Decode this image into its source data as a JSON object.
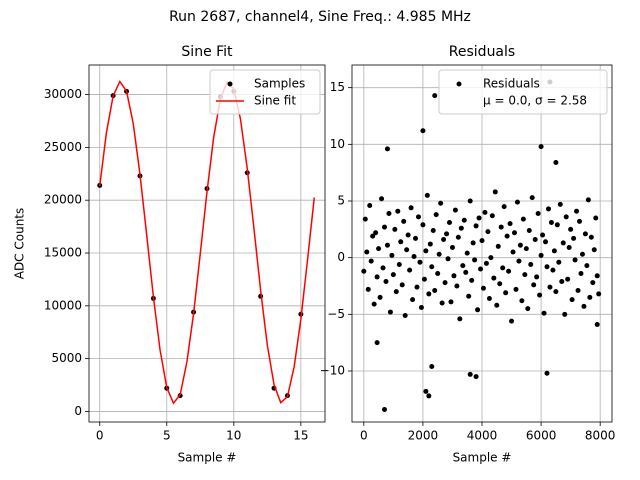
{
  "title": "Run 2687, channel4, Sine Freq.: 4.985 MHz",
  "chart_data": [
    {
      "type": "line",
      "title": "Sine Fit",
      "xlabel": "Sample #",
      "ylabel": "ADC Counts",
      "xlim": [
        -0.8,
        16.8
      ],
      "xticks": [
        0,
        5,
        10,
        15
      ],
      "ylim": [
        -1000,
        32800
      ],
      "yticks": [
        0,
        5000,
        10000,
        15000,
        20000,
        25000,
        30000
      ],
      "grid": true,
      "legend": "upper right",
      "series": [
        {
          "name": "Samples",
          "type": "scatter",
          "color": "#000000",
          "x": [
            0,
            1,
            2,
            3,
            4,
            5,
            6,
            7,
            8,
            9,
            10,
            11,
            12,
            13,
            14,
            15
          ],
          "values": [
            21400,
            29900,
            30300,
            22300,
            10700,
            2200,
            1500,
            9400,
            21100,
            29800,
            30300,
            22600,
            10900,
            2200,
            1500,
            9200
          ]
        },
        {
          "name": "Sine fit",
          "type": "line",
          "color": "#ff0000",
          "x": [
            0,
            0.5,
            1,
            1.5,
            2,
            2.5,
            3,
            3.5,
            4,
            4.5,
            5,
            5.5,
            6,
            6.5,
            7,
            7.5,
            8,
            8.5,
            9,
            9.5,
            10,
            10.5,
            11,
            11.5,
            12,
            12.5,
            13,
            13.5,
            14,
            14.5,
            15,
            15.5,
            16
          ],
          "values": [
            21350,
            26400,
            29870,
            31240,
            30320,
            27250,
            22470,
            16740,
            10890,
            5810,
            2260,
            780,
            1590,
            4680,
            9260,
            14960,
            20800,
            25970,
            29600,
            31200,
            30510,
            27650,
            23010,
            17340,
            11460,
            6260,
            2530,
            830,
            1400,
            4230,
            8730,
            14380,
            20250
          ]
        }
      ]
    },
    {
      "type": "scatter",
      "title": "Residuals",
      "xlabel": "Sample #",
      "xlim": [
        -400,
        8400
      ],
      "xticks": [
        0,
        2000,
        4000,
        6000,
        8000
      ],
      "ylim": [
        -14.5,
        17
      ],
      "yticks": [
        {
          "value": -10,
          "label": "−10"
        },
        {
          "value": -5,
          "label": "−5"
        },
        0,
        5,
        10,
        15
      ],
      "grid": true,
      "legend": "upper right",
      "annotation": "μ = 0.0, σ = 2.58",
      "series": [
        {
          "name": "Residuals",
          "type": "scatter",
          "color": "#000000",
          "x": [
            0,
            50,
            100,
            150,
            200,
            250,
            300,
            350,
            400,
            450,
            500,
            550,
            600,
            650,
            700,
            750,
            800,
            850,
            900,
            950,
            1000,
            1050,
            1100,
            1150,
            1200,
            1250,
            1300,
            1350,
            1400,
            1450,
            1500,
            1550,
            1600,
            1650,
            1700,
            1750,
            1800,
            1850,
            1900,
            1950,
            2000,
            2050,
            2100,
            2150,
            2200,
            2250,
            2300,
            2350,
            2400,
            2450,
            2500,
            2550,
            2600,
            2650,
            2700,
            2750,
            2800,
            2850,
            2900,
            2950,
            3000,
            3050,
            3100,
            3150,
            3200,
            3250,
            3300,
            3350,
            3400,
            3450,
            3500,
            3550,
            3600,
            3650,
            3700,
            3750,
            3800,
            3850,
            3900,
            3950,
            4000,
            4050,
            4100,
            4150,
            4200,
            4250,
            4300,
            4350,
            4400,
            4450,
            4500,
            4550,
            4600,
            4650,
            4700,
            4750,
            4800,
            4850,
            4900,
            4950,
            5000,
            5050,
            5100,
            5150,
            5200,
            5250,
            5300,
            5350,
            5400,
            5450,
            5500,
            5550,
            5600,
            5650,
            5700,
            5750,
            5800,
            5850,
            5900,
            5950,
            6000,
            6050,
            6100,
            6150,
            6200,
            6250,
            6300,
            6350,
            6400,
            6450,
            6500,
            6550,
            6600,
            6650,
            6700,
            6750,
            6800,
            6850,
            6900,
            6950,
            7000,
            7050,
            7100,
            7150,
            7200,
            7250,
            7300,
            7350,
            7400,
            7450,
            7500,
            7550,
            7600,
            7650,
            7700,
            7750,
            7800,
            7850,
            7900,
            7950,
            700,
            2400,
            6300,
            800,
            2100,
            3600,
            6200,
            2200,
            6000,
            6500,
            2000,
            2300,
            3800,
            450,
            7900
          ],
          "values": [
            -1.2,
            3.4,
            0.5,
            -2.8,
            4.6,
            -0.3,
            1.9,
            -4.1,
            2.2,
            -1.7,
            0.8,
            -3.5,
            5.2,
            -0.9,
            2.7,
            -2.1,
            1.1,
            3.9,
            -4.8,
            0.2,
            -1.5,
            2.5,
            -3.0,
            4.1,
            -0.6,
            1.4,
            -2.4,
            3.2,
            -5.1,
            0.7,
            2.0,
            -1.1,
            4.4,
            -3.7,
            0.1,
            1.7,
            -2.6,
            3.6,
            -0.4,
            -4.4,
            2.9,
            -1.9,
            0.6,
            5.5,
            -3.2,
            1.2,
            -0.8,
            2.4,
            -2.9,
            3.8,
            -1.4,
            0.3,
            4.8,
            -4.0,
            1.6,
            -2.2,
            2.1,
            -0.1,
            3.1,
            -3.9,
            0.9,
            -1.6,
            4.2,
            -2.5,
            1.8,
            -5.4,
            2.6,
            -0.7,
            3.3,
            -1.3,
            0.4,
            -3.4,
            5.0,
            -2.0,
            1.3,
            -0.2,
            2.8,
            -4.6,
            3.5,
            -1.0,
            1.5,
            -2.7,
            4.0,
            -0.5,
            2.3,
            -3.6,
            0.0,
            3.7,
            -1.8,
            5.8,
            -4.2,
            1.0,
            -2.3,
            2.7,
            -0.9,
            4.5,
            -3.1,
            1.9,
            -1.2,
            3.0,
            -5.6,
            0.5,
            2.2,
            -2.8,
            4.9,
            -0.3,
            1.1,
            -3.8,
            3.4,
            -1.5,
            0.8,
            -4.5,
            2.4,
            -0.6,
            5.3,
            -2.4,
            1.6,
            -1.7,
            3.9,
            -3.3,
            0.2,
            2.0,
            -4.9,
            1.4,
            -0.8,
            4.3,
            -2.6,
            3.1,
            -1.1,
            0.6,
            -3.0,
            2.9,
            -0.4,
            4.7,
            -2.1,
            1.3,
            -5.0,
            3.6,
            -1.9,
            0.9,
            2.5,
            -3.7,
            1.7,
            -0.2,
            4.1,
            -2.9,
            3.2,
            -1.4,
            0.3,
            -4.3,
            2.1,
            -0.7,
            5.1,
            -3.5,
            1.8,
            -2.2,
            0.7,
            3.5,
            -1.6,
            -3.2,
            -13.4,
            14.3,
            15.5,
            9.6,
            -11.8,
            -10.3,
            -10.2,
            -12.2,
            9.8,
            8.4,
            11.2,
            -9.6,
            -10.5,
            -7.5,
            -5.9
          ]
        }
      ]
    }
  ]
}
